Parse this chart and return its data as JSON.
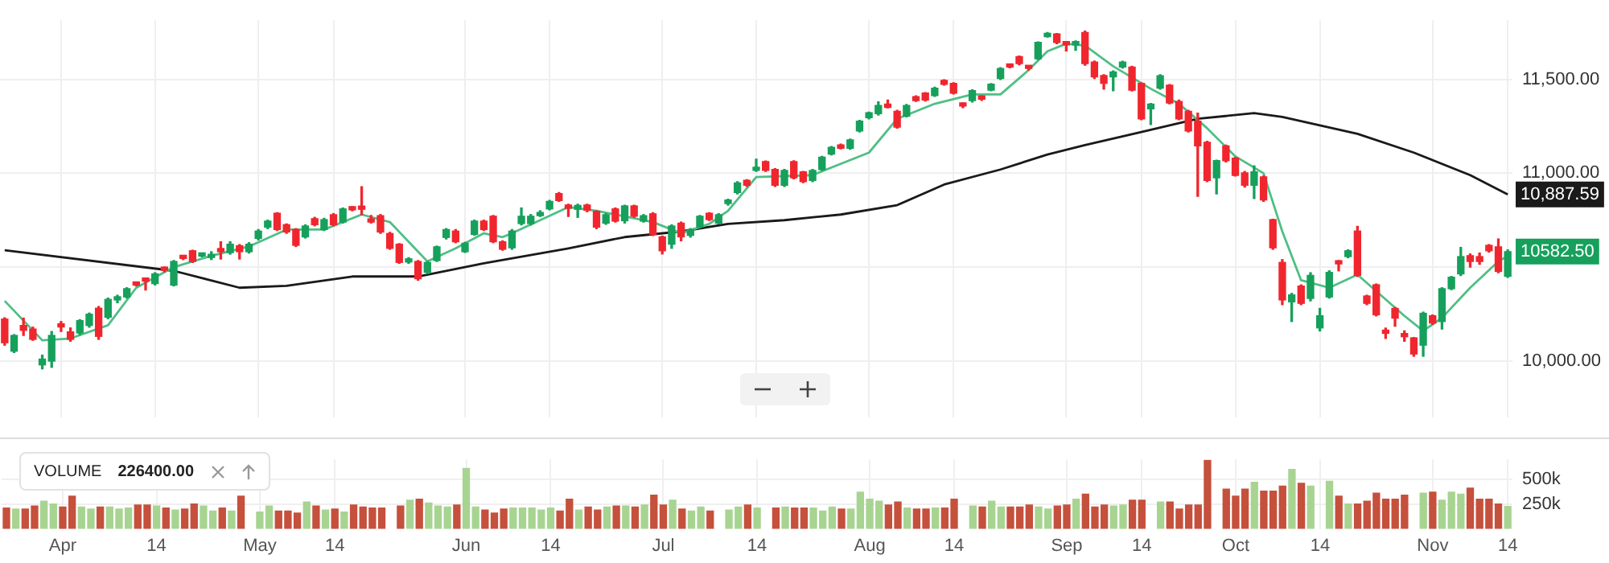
{
  "chart_data": [
    {
      "type": "candlestick",
      "categories": [
        null,
        null,
        null,
        null,
        null,
        null,
        null,
        null,
        null,
        null,
        null,
        null,
        null,
        null,
        null,
        null,
        null,
        null,
        null,
        null,
        null,
        null,
        null,
        null,
        null,
        null,
        null,
        null,
        null,
        null,
        null,
        null,
        null,
        null,
        null,
        null,
        null,
        null,
        null,
        null,
        null,
        null,
        null,
        null,
        null,
        null,
        null,
        null,
        null,
        null,
        null,
        null,
        null,
        null,
        null,
        null,
        null,
        null,
        null,
        null,
        null,
        null,
        null,
        null,
        null,
        null,
        null,
        null,
        null,
        null,
        null,
        null,
        null,
        null,
        null,
        null,
        null,
        null,
        null,
        null,
        null,
        null,
        null,
        null,
        null,
        null,
        null,
        null,
        null,
        null,
        null,
        null,
        null,
        null,
        null,
        null,
        null,
        null,
        null,
        null,
        null,
        null,
        null,
        null,
        null,
        null,
        null,
        null,
        null,
        null,
        null,
        null,
        null,
        null,
        null,
        null,
        null,
        null,
        null,
        null,
        null,
        null,
        null,
        null,
        null,
        null,
        null,
        null,
        null,
        null,
        null,
        null,
        null,
        null,
        null,
        null,
        null,
        null,
        null,
        null,
        null,
        null,
        null,
        null,
        null,
        null,
        null,
        null,
        null,
        null,
        null,
        null,
        null,
        null,
        null,
        null,
        null,
        null,
        null,
        null,
        null
      ],
      "ohlc": [
        [
          10223,
          10230,
          10084,
          10097
        ],
        [
          10052,
          10140,
          10045,
          10136
        ],
        [
          10189,
          10228,
          10136,
          10163
        ],
        [
          10170,
          10180,
          10110,
          10115
        ],
        [
          9979,
          10031,
          9958,
          10010
        ],
        [
          9999,
          10157,
          9966,
          10136
        ],
        [
          10194,
          10210,
          10157,
          10181
        ],
        [
          10155,
          10176,
          10105,
          10115
        ],
        [
          10149,
          10220,
          10140,
          10215
        ],
        [
          10189,
          10255,
          10180,
          10249
        ],
        [
          10281,
          10290,
          10115,
          10131
        ],
        [
          10233,
          10335,
          10225,
          10328
        ],
        [
          10325,
          10350,
          10310,
          10338
        ],
        [
          10341,
          10390,
          10335,
          10385
        ],
        [
          10414,
          10420,
          10400,
          10404
        ],
        [
          10433,
          10435,
          10378,
          10425
        ],
        [
          10412,
          10470,
          10405,
          10464
        ],
        [
          10496,
          10500,
          10475,
          10483
        ],
        [
          10404,
          10535,
          10400,
          10530
        ],
        [
          10556,
          10560,
          10540,
          10546
        ],
        [
          10587,
          10590,
          10525,
          10530
        ],
        [
          10559,
          10570,
          10555,
          10567
        ],
        [
          10551,
          10582,
          10540,
          10561
        ],
        [
          10593,
          10635,
          10543,
          10582
        ],
        [
          10577,
          10635,
          10569,
          10622
        ],
        [
          10614,
          10620,
          10543,
          10582
        ],
        [
          10582,
          10630,
          10575,
          10622
        ],
        [
          10653,
          10700,
          10645,
          10692
        ],
        [
          10713,
          10750,
          10705,
          10745
        ],
        [
          10787,
          10790,
          10695,
          10700
        ],
        [
          10726,
          10730,
          10680,
          10687
        ],
        [
          10700,
          10705,
          10610,
          10616
        ],
        [
          10661,
          10725,
          10655,
          10719
        ],
        [
          10758,
          10765,
          10720,
          10726
        ],
        [
          10700,
          10760,
          10695,
          10753
        ],
        [
          10779,
          10785,
          10720,
          10726
        ],
        [
          10740,
          10815,
          10735,
          10810
        ],
        [
          10818,
          10822,
          10800,
          10805
        ],
        [
          10818,
          10928,
          10779,
          10808
        ],
        [
          10753,
          10775,
          10735,
          10740
        ],
        [
          10774,
          10780,
          10680,
          10687
        ],
        [
          10679,
          10685,
          10595,
          10600
        ],
        [
          10622,
          10625,
          10520,
          10525
        ],
        [
          10527,
          10550,
          10520,
          10543
        ],
        [
          10530,
          10535,
          10430,
          10438
        ],
        [
          10472,
          10530,
          10465,
          10525
        ],
        [
          10535,
          10612,
          10530,
          10608
        ],
        [
          10658,
          10705,
          10650,
          10700
        ],
        [
          10692,
          10700,
          10630,
          10635
        ],
        [
          10582,
          10632,
          10578,
          10627
        ],
        [
          10674,
          10750,
          10670,
          10745
        ],
        [
          10745,
          10750,
          10695,
          10700
        ],
        [
          10771,
          10775,
          10630,
          10635
        ],
        [
          10635,
          10640,
          10590,
          10595
        ],
        [
          10603,
          10700,
          10595,
          10692
        ],
        [
          10732,
          10815,
          10725,
          10771
        ],
        [
          10732,
          10780,
          10725,
          10771
        ],
        [
          10774,
          10800,
          10770,
          10787
        ],
        [
          10810,
          10855,
          10805,
          10850
        ],
        [
          10892,
          10897,
          10850,
          10855
        ],
        [
          10831,
          10835,
          10770,
          10813
        ],
        [
          10808,
          10835,
          10765,
          10829
        ],
        [
          10831,
          10835,
          10795,
          10803
        ],
        [
          10797,
          10800,
          10705,
          10713
        ],
        [
          10734,
          10785,
          10728,
          10779
        ],
        [
          10810,
          10815,
          10740,
          10745
        ],
        [
          10747,
          10830,
          10735,
          10826
        ],
        [
          10826,
          10830,
          10765,
          10771
        ],
        [
          10745,
          10780,
          10740,
          10774
        ],
        [
          10784,
          10790,
          10668,
          10674
        ],
        [
          10661,
          10665,
          10570,
          10587
        ],
        [
          10622,
          10725,
          10600,
          10719
        ],
        [
          10734,
          10740,
          10640,
          10661
        ],
        [
          10669,
          10705,
          10660,
          10700
        ],
        [
          10713,
          10775,
          10708,
          10771
        ],
        [
          10787,
          10790,
          10748,
          10753
        ],
        [
          10734,
          10785,
          10730,
          10779
        ],
        [
          10839,
          10862,
          10830,
          10858
        ],
        [
          10897,
          10955,
          10890,
          10949
        ],
        [
          10962,
          10966,
          10930,
          10936
        ],
        [
          11015,
          11075,
          11010,
          11028
        ],
        [
          11062,
          11065,
          11010,
          11015
        ],
        [
          11020,
          11025,
          10930,
          10936
        ],
        [
          10936,
          11020,
          10930,
          11015
        ],
        [
          11062,
          11066,
          10970,
          10976
        ],
        [
          11007,
          11010,
          10950,
          10955
        ],
        [
          10962,
          11020,
          10955,
          11015
        ],
        [
          11020,
          11090,
          11015,
          11086
        ],
        [
          11102,
          11142,
          11098,
          11138
        ],
        [
          11151,
          11155,
          11130,
          11133
        ],
        [
          11133,
          11182,
          11128,
          11178
        ],
        [
          11225,
          11282,
          11220,
          11277
        ],
        [
          11296,
          11326,
          11290,
          11322
        ],
        [
          11317,
          11380,
          11310,
          11361
        ],
        [
          11369,
          11390,
          11348,
          11351
        ],
        [
          11330,
          11335,
          11240,
          11246
        ],
        [
          11304,
          11366,
          11300,
          11361
        ],
        [
          11408,
          11412,
          11383,
          11387
        ],
        [
          11427,
          11430,
          11385,
          11390
        ],
        [
          11414,
          11458,
          11410,
          11453
        ],
        [
          11495,
          11498,
          11470,
          11474
        ],
        [
          11479,
          11482,
          11422,
          11427
        ],
        [
          11372,
          11375,
          11350,
          11358
        ],
        [
          11387,
          11445,
          11380,
          11440
        ],
        [
          11408,
          11412,
          11388,
          11395
        ],
        [
          11443,
          11478,
          11440,
          11474
        ],
        [
          11505,
          11562,
          11500,
          11558
        ],
        [
          11579,
          11582,
          11562,
          11566
        ],
        [
          11621,
          11625,
          11578,
          11584
        ],
        [
          11566,
          11570,
          11550,
          11558
        ],
        [
          11610,
          11700,
          11605,
          11697
        ],
        [
          11728,
          11750,
          11725,
          11742
        ],
        [
          11742,
          11745,
          11690,
          11697
        ],
        [
          11697,
          11700,
          11652,
          11684
        ],
        [
          11684,
          11705,
          11655,
          11697
        ],
        [
          11750,
          11757,
          11575,
          11584
        ],
        [
          11592,
          11598,
          11505,
          11513
        ],
        [
          11521,
          11525,
          11448,
          11479
        ],
        [
          11513,
          11545,
          11440,
          11540
        ],
        [
          11566,
          11597,
          11560,
          11592
        ],
        [
          11566,
          11570,
          11438,
          11443
        ],
        [
          11479,
          11482,
          11285,
          11290
        ],
        [
          11343,
          11372,
          11260,
          11369
        ],
        [
          11453,
          11525,
          11448,
          11519
        ],
        [
          11469,
          11472,
          11370,
          11374
        ],
        [
          11382,
          11390,
          11285,
          11290
        ],
        [
          11330,
          11335,
          11220,
          11225
        ],
        [
          11277,
          11320,
          10877,
          11146
        ],
        [
          11165,
          11170,
          10955,
          10962
        ],
        [
          10976,
          11070,
          10890,
          11067
        ],
        [
          11146,
          11150,
          11060,
          11067
        ],
        [
          11080,
          11085,
          10985,
          10989
        ],
        [
          11002,
          11010,
          10926,
          10936
        ],
        [
          10936,
          11040,
          10865,
          11007
        ],
        [
          10981,
          10985,
          10850,
          10858
        ],
        [
          10753,
          10755,
          10595,
          10603
        ],
        [
          10525,
          10540,
          10300,
          10325
        ],
        [
          10315,
          10360,
          10210,
          10352
        ],
        [
          10399,
          10405,
          10300,
          10307
        ],
        [
          10333,
          10470,
          10320,
          10456
        ],
        [
          10176,
          10280,
          10160,
          10241
        ],
        [
          10341,
          10480,
          10335,
          10472
        ],
        [
          10530,
          10535,
          10480,
          10517
        ],
        [
          10556,
          10592,
          10550,
          10587
        ],
        [
          10692,
          10717,
          10450,
          10456
        ],
        [
          10346,
          10350,
          10300,
          10307
        ],
        [
          10406,
          10410,
          10240,
          10246
        ],
        [
          10157,
          10175,
          10120,
          10147
        ],
        [
          10280,
          10285,
          10185,
          10228
        ],
        [
          10142,
          10160,
          10105,
          10129
        ],
        [
          10123,
          10125,
          10025,
          10037
        ],
        [
          10084,
          10260,
          10025,
          10254
        ],
        [
          10241,
          10245,
          10195,
          10202
        ],
        [
          10210,
          10390,
          10170,
          10385
        ],
        [
          10385,
          10450,
          10380,
          10446
        ],
        [
          10464,
          10605,
          10455,
          10556
        ],
        [
          10561,
          10570,
          10500,
          10530
        ],
        [
          10556,
          10575,
          10515,
          10530
        ],
        [
          10616,
          10620,
          10580,
          10587
        ],
        [
          10608,
          10650,
          10470,
          10477
        ],
        [
          10451,
          10592,
          10445,
          10582.5
        ]
      ],
      "colors": [
        "#f0262e",
        "#16a05c",
        "#f0262e",
        "#f0262e",
        "#16a05c",
        "#16a05c",
        "#f0262e",
        "#f0262e",
        "#16a05c",
        "#16a05c",
        "#f0262e",
        "#16a05c",
        "#16a05c",
        "#16a05c",
        "#f0262e",
        "#f0262e",
        "#16a05c",
        "#f0262e",
        "#16a05c",
        "#f0262e",
        "#f0262e",
        "#16a05c",
        "#16a05c",
        "#f0262e",
        "#16a05c",
        "#f0262e",
        "#16a05c",
        "#16a05c",
        "#16a05c",
        "#f0262e",
        "#f0262e",
        "#f0262e",
        "#16a05c",
        "#f0262e",
        "#16a05c",
        "#f0262e",
        "#16a05c",
        "#f0262e",
        "#f0262e",
        "#f0262e",
        "#f0262e",
        "#f0262e",
        "#f0262e",
        "#16a05c",
        "#f0262e",
        "#16a05c",
        "#16a05c",
        "#16a05c",
        "#f0262e",
        "#16a05c",
        "#16a05c",
        "#f0262e",
        "#f0262e",
        "#f0262e",
        "#16a05c",
        "#16a05c",
        "#16a05c",
        "#16a05c",
        "#16a05c",
        "#f0262e",
        "#f0262e",
        "#16a05c",
        "#f0262e",
        "#f0262e",
        "#16a05c",
        "#f0262e",
        "#16a05c",
        "#f0262e",
        "#16a05c",
        "#f0262e",
        "#f0262e",
        "#16a05c",
        "#f0262e",
        "#16a05c",
        "#16a05c",
        "#f0262e",
        "#16a05c",
        "#16a05c",
        "#16a05c",
        "#f0262e",
        "#16a05c",
        "#f0262e",
        "#f0262e",
        "#16a05c",
        "#f0262e",
        "#f0262e",
        "#16a05c",
        "#16a05c",
        "#16a05c",
        "#f0262e",
        "#16a05c",
        "#16a05c",
        "#16a05c",
        "#16a05c",
        "#f0262e",
        "#f0262e",
        "#16a05c",
        "#f0262e",
        "#f0262e",
        "#16a05c",
        "#f0262e",
        "#f0262e",
        "#f0262e",
        "#16a05c",
        "#f0262e",
        "#16a05c",
        "#16a05c",
        "#f0262e",
        "#f0262e",
        "#f0262e",
        "#16a05c",
        "#16a05c",
        "#f0262e",
        "#f0262e",
        "#16a05c",
        "#f0262e",
        "#f0262e",
        "#f0262e",
        "#16a05c",
        "#16a05c",
        "#f0262e",
        "#f0262e",
        "#16a05c",
        "#16a05c",
        "#f0262e",
        "#f0262e",
        "#f0262e",
        "#f0262e",
        "#f0262e",
        "#16a05c",
        "#f0262e",
        "#f0262e",
        "#f0262e",
        "#16a05c",
        "#f0262e",
        "#f0262e",
        "#f0262e",
        "#16a05c",
        "#f0262e",
        "#16a05c",
        "#16a05c",
        "#16a05c",
        "#f0262e",
        "#16a05c",
        "#f0262e",
        "#f0262e",
        "#f0262e",
        "#f0262e",
        "#f0262e",
        "#f0262e",
        "#f0262e",
        "#16a05c",
        "#f0262e",
        "#16a05c",
        "#16a05c",
        "#16a05c",
        "#f0262e",
        "#f0262e",
        "#f0262e",
        "#f0262e",
        "#16a05c"
      ],
      "series": [
        {
          "type": "line",
          "color": "#4fbf85",
          "values": [
            10320,
            null,
            null,
            null,
            10110,
            null,
            null,
            10120,
            null,
            null,
            null,
            10190,
            null,
            null,
            10390,
            null,
            null,
            null,
            10500,
            null,
            null,
            null,
            10560,
            null,
            null,
            null,
            10610,
            null,
            null,
            null,
            10700,
            null,
            null,
            null,
            10700,
            null,
            null,
            null,
            10780,
            null,
            null,
            10740,
            null,
            null,
            null,
            10530,
            null,
            null,
            10600,
            null,
            null,
            10680,
            null,
            10660,
            10680,
            null,
            null,
            null,
            null,
            null,
            10820,
            null,
            null,
            10800,
            null,
            null,
            null,
            null,
            null,
            10740,
            null,
            null,
            10680,
            null,
            null,
            10730,
            null,
            10800,
            null,
            null,
            10980,
            null,
            null,
            null,
            null,
            null,
            10990,
            null,
            null,
            null,
            null,
            null,
            11110,
            null,
            null,
            11290,
            null,
            null,
            null,
            11370,
            null,
            null,
            null,
            11420,
            null,
            null,
            11420,
            null,
            null,
            11550,
            null,
            11650,
            null,
            11690,
            null,
            11680,
            null,
            null,
            11570,
            null,
            null,
            null,
            11450,
            null,
            null,
            11370,
            null,
            null,
            11240,
            null,
            null,
            11090,
            null,
            null,
            11000,
            null,
            10690,
            null,
            10430,
            null,
            null,
            10390,
            null,
            null,
            10460,
            null,
            null,
            null,
            null,
            10240,
            null,
            10160,
            null,
            10230,
            null,
            null,
            10390,
            null,
            null,
            10530,
            10560
          ]
        },
        {
          "type": "line",
          "color": "#1a1a1a",
          "values": [
            10590,
            null,
            null,
            null,
            null,
            null,
            null,
            null,
            null,
            null,
            null,
            null,
            null,
            null,
            null,
            null,
            null,
            null,
            10480,
            null,
            null,
            null,
            null,
            null,
            null,
            10390,
            null,
            null,
            null,
            null,
            10400,
            null,
            null,
            null,
            null,
            null,
            null,
            10450,
            null,
            null,
            null,
            null,
            null,
            null,
            10450,
            null,
            null,
            null,
            null,
            null,
            null,
            10520,
            null,
            null,
            null,
            null,
            null,
            null,
            null,
            null,
            10600,
            null,
            null,
            null,
            null,
            null,
            10660,
            null,
            null,
            null,
            null,
            null,
            10690,
            null,
            null,
            null,
            null,
            10730,
            null,
            null,
            null,
            null,
            null,
            10750,
            null,
            null,
            null,
            null,
            null,
            10780,
            null,
            null,
            null,
            null,
            null,
            10830,
            null,
            null,
            null,
            null,
            10940,
            null,
            null,
            null,
            null,
            null,
            11020,
            null,
            null,
            null,
            null,
            11100,
            null,
            null,
            null,
            11150,
            null,
            null,
            null,
            null,
            null,
            11220,
            null,
            null,
            null,
            null,
            null,
            11290,
            null,
            null,
            null,
            null,
            null,
            11320,
            null,
            null,
            11300,
            null,
            null,
            null,
            null,
            null,
            null,
            null,
            11210,
            null,
            null,
            null,
            null,
            null,
            11110,
            null,
            null,
            null,
            null,
            null,
            10990,
            null,
            null,
            null,
            10887.59
          ],
          "value_labels": [
            null,
            null,
            null,
            null,
            null,
            null,
            null,
            null,
            null,
            null,
            null,
            null,
            null,
            null,
            null,
            null,
            null,
            null,
            null,
            null,
            null,
            null,
            null,
            null,
            null,
            null,
            null,
            null,
            null,
            null,
            null,
            null,
            null,
            null,
            null,
            null,
            null,
            null,
            null,
            null,
            null,
            null,
            null,
            null,
            null,
            null,
            null,
            null,
            null,
            null,
            null,
            null,
            null,
            null,
            null,
            null,
            null,
            null,
            null,
            null,
            null,
            null,
            null,
            null,
            null,
            null,
            null,
            null,
            null,
            null,
            null,
            null,
            null,
            null,
            null,
            null,
            null,
            null,
            null,
            null,
            null,
            null,
            null,
            null,
            null,
            null,
            null,
            null,
            null,
            null,
            null,
            null,
            null,
            null,
            null,
            null,
            null,
            null,
            null,
            null,
            null,
            null,
            null,
            null,
            null,
            null,
            null,
            null,
            null,
            null,
            null,
            null,
            null,
            null,
            null,
            null,
            null,
            null,
            null,
            null,
            null,
            null,
            null,
            null,
            null,
            null,
            null,
            null,
            null,
            null,
            null,
            null,
            null,
            null,
            null,
            null,
            null,
            null,
            null,
            null,
            null,
            null,
            null,
            null,
            null,
            null,
            null,
            null,
            null,
            null,
            null,
            null,
            null,
            null,
            null,
            null,
            null,
            null,
            null,
            null,
            "10,887.59"
          ]
        }
      ],
      "annotations": [
        "10582.50"
      ],
      "ylim": [
        9700,
        11815
      ],
      "yticks": [
        {
          "value": 10000,
          "label": "10,000.00"
        },
        {
          "value": 10500,
          "label": null
        },
        {
          "value": 11000,
          "label": "11,000.00"
        },
        {
          "value": 11500,
          "label": "11,500.00"
        }
      ],
      "grid": true,
      "marker": "none",
      "tick_labels": "y"
    },
    {
      "type": "bar",
      "title": "VOLUME",
      "annotations": [
        "226400.00"
      ],
      "categories": [
        null,
        null,
        null,
        null,
        null,
        null,
        "Apr",
        null,
        null,
        null,
        null,
        null,
        null,
        null,
        null,
        null,
        "14",
        null,
        null,
        null,
        null,
        null,
        null,
        null,
        null,
        null,
        null,
        "May",
        null,
        null,
        null,
        null,
        null,
        null,
        null,
        "14",
        null,
        null,
        null,
        null,
        null,
        null,
        null,
        null,
        null,
        null,
        null,
        null,
        null,
        "Jun",
        null,
        null,
        null,
        null,
        null,
        null,
        null,
        null,
        "14",
        null,
        null,
        null,
        null,
        null,
        null,
        null,
        null,
        null,
        null,
        null,
        "Jul",
        null,
        null,
        null,
        null,
        null,
        null,
        null,
        null,
        null,
        "14",
        null,
        null,
        null,
        null,
        null,
        null,
        null,
        null,
        null,
        null,
        null,
        "Aug",
        null,
        null,
        null,
        null,
        null,
        null,
        null,
        null,
        "14",
        null,
        null,
        null,
        null,
        null,
        null,
        null,
        null,
        null,
        null,
        null,
        "Sep",
        null,
        null,
        null,
        null,
        null,
        null,
        null,
        "14",
        null,
        null,
        null,
        null,
        null,
        null,
        null,
        null,
        null,
        "Oct",
        null,
        null,
        null,
        null,
        null,
        null,
        null,
        null,
        "14",
        null,
        null,
        null,
        null,
        null,
        null,
        null,
        null,
        null,
        null,
        null,
        "Nov",
        null,
        null,
        null,
        null,
        null,
        null,
        null,
        "14"
      ],
      "values": [
        210000,
        200000,
        200000,
        230000,
        280000,
        250000,
        220000,
        330000,
        220000,
        200000,
        220000,
        220000,
        200000,
        210000,
        240000,
        240000,
        230000,
        210000,
        190000,
        200000,
        250000,
        230000,
        180000,
        210000,
        180000,
        330000,
        null,
        170000,
        230000,
        180000,
        180000,
        160000,
        270000,
        230000,
        190000,
        200000,
        170000,
        240000,
        220000,
        210000,
        210000,
        null,
        230000,
        290000,
        300000,
        260000,
        230000,
        220000,
        240000,
        610000,
        220000,
        190000,
        160000,
        200000,
        210000,
        210000,
        210000,
        190000,
        210000,
        180000,
        300000,
        190000,
        220000,
        190000,
        220000,
        230000,
        230000,
        220000,
        240000,
        340000,
        240000,
        290000,
        200000,
        180000,
        220000,
        180000,
        null,
        190000,
        220000,
        240000,
        210000,
        null,
        210000,
        220000,
        210000,
        210000,
        210000,
        180000,
        220000,
        200000,
        200000,
        370000,
        300000,
        280000,
        240000,
        270000,
        210000,
        200000,
        200000,
        210000,
        210000,
        300000,
        null,
        230000,
        220000,
        280000,
        220000,
        220000,
        220000,
        240000,
        220000,
        200000,
        230000,
        240000,
        300000,
        350000,
        220000,
        240000,
        230000,
        240000,
        290000,
        290000,
        null,
        270000,
        270000,
        200000,
        240000,
        240000,
        690000,
        null,
        400000,
        330000,
        400000,
        470000,
        380000,
        380000,
        430000,
        600000,
        460000,
        430000,
        null,
        480000,
        330000,
        250000,
        250000,
        280000,
        360000,
        300000,
        300000,
        340000,
        null,
        360000,
        370000,
        290000,
        370000,
        350000,
        410000,
        300000,
        300000,
        250000,
        226400
      ],
      "colors": [
        "#c5503c",
        "#a8d492",
        "#c5503c",
        "#c5503c",
        "#a8d492",
        "#a8d492",
        "#c5503c",
        "#c5503c",
        "#a8d492",
        "#a8d492",
        "#c5503c",
        "#a8d492",
        "#a8d492",
        "#a8d492",
        "#c5503c",
        "#c5503c",
        "#a8d492",
        "#c5503c",
        "#a8d492",
        "#c5503c",
        "#c5503c",
        "#a8d492",
        "#a8d492",
        "#c5503c",
        "#a8d492",
        "#c5503c",
        "#a8d492",
        "#a8d492",
        "#a8d492",
        "#c5503c",
        "#c5503c",
        "#c5503c",
        "#a8d492",
        "#c5503c",
        "#a8d492",
        "#c5503c",
        "#a8d492",
        "#c5503c",
        "#c5503c",
        "#c5503c",
        "#c5503c",
        "#c5503c",
        "#c5503c",
        "#a8d492",
        "#c5503c",
        "#a8d492",
        "#a8d492",
        "#a8d492",
        "#c5503c",
        "#a8d492",
        "#a8d492",
        "#c5503c",
        "#c5503c",
        "#c5503c",
        "#a8d492",
        "#a8d492",
        "#a8d492",
        "#a8d492",
        "#a8d492",
        "#c5503c",
        "#c5503c",
        "#a8d492",
        "#c5503c",
        "#c5503c",
        "#a8d492",
        "#c5503c",
        "#a8d492",
        "#c5503c",
        "#a8d492",
        "#c5503c",
        "#c5503c",
        "#a8d492",
        "#c5503c",
        "#a8d492",
        "#a8d492",
        "#c5503c",
        "#a8d492",
        "#a8d492",
        "#a8d492",
        "#c5503c",
        "#a8d492",
        "#c5503c",
        "#c5503c",
        "#a8d492",
        "#c5503c",
        "#c5503c",
        "#a8d492",
        "#a8d492",
        "#a8d492",
        "#c5503c",
        "#a8d492",
        "#a8d492",
        "#a8d492",
        "#a8d492",
        "#c5503c",
        "#c5503c",
        "#a8d492",
        "#c5503c",
        "#c5503c",
        "#a8d492",
        "#c5503c",
        "#c5503c",
        "#c5503c",
        "#a8d492",
        "#c5503c",
        "#a8d492",
        "#a8d492",
        "#c5503c",
        "#c5503c",
        "#c5503c",
        "#a8d492",
        "#a8d492",
        "#c5503c",
        "#c5503c",
        "#a8d492",
        "#c5503c",
        "#c5503c",
        "#c5503c",
        "#a8d492",
        "#a8d492",
        "#c5503c",
        "#c5503c",
        "#a8d492",
        "#a8d492",
        "#c5503c",
        "#c5503c",
        "#c5503c",
        "#c5503c",
        "#c5503c",
        "#a8d492",
        "#c5503c",
        "#c5503c",
        "#c5503c",
        "#a8d492",
        "#c5503c",
        "#c5503c",
        "#c5503c",
        "#a8d492",
        "#c5503c",
        "#a8d492",
        "#a8d492",
        "#a8d492",
        "#c5503c",
        "#a8d492",
        "#c5503c",
        "#c5503c",
        "#c5503c",
        "#c5503c",
        "#c5503c",
        "#c5503c",
        "#c5503c",
        "#a8d492",
        "#c5503c",
        "#a8d492",
        "#a8d492",
        "#a8d492",
        "#c5503c",
        "#c5503c",
        "#c5503c",
        "#c5503c",
        "#a8d492"
      ],
      "ylim": [
        0,
        700000
      ],
      "yticks": [
        {
          "value": 250000,
          "label": "250k"
        },
        {
          "value": 500000,
          "label": "500k"
        }
      ],
      "grid": true
    }
  ]
}
